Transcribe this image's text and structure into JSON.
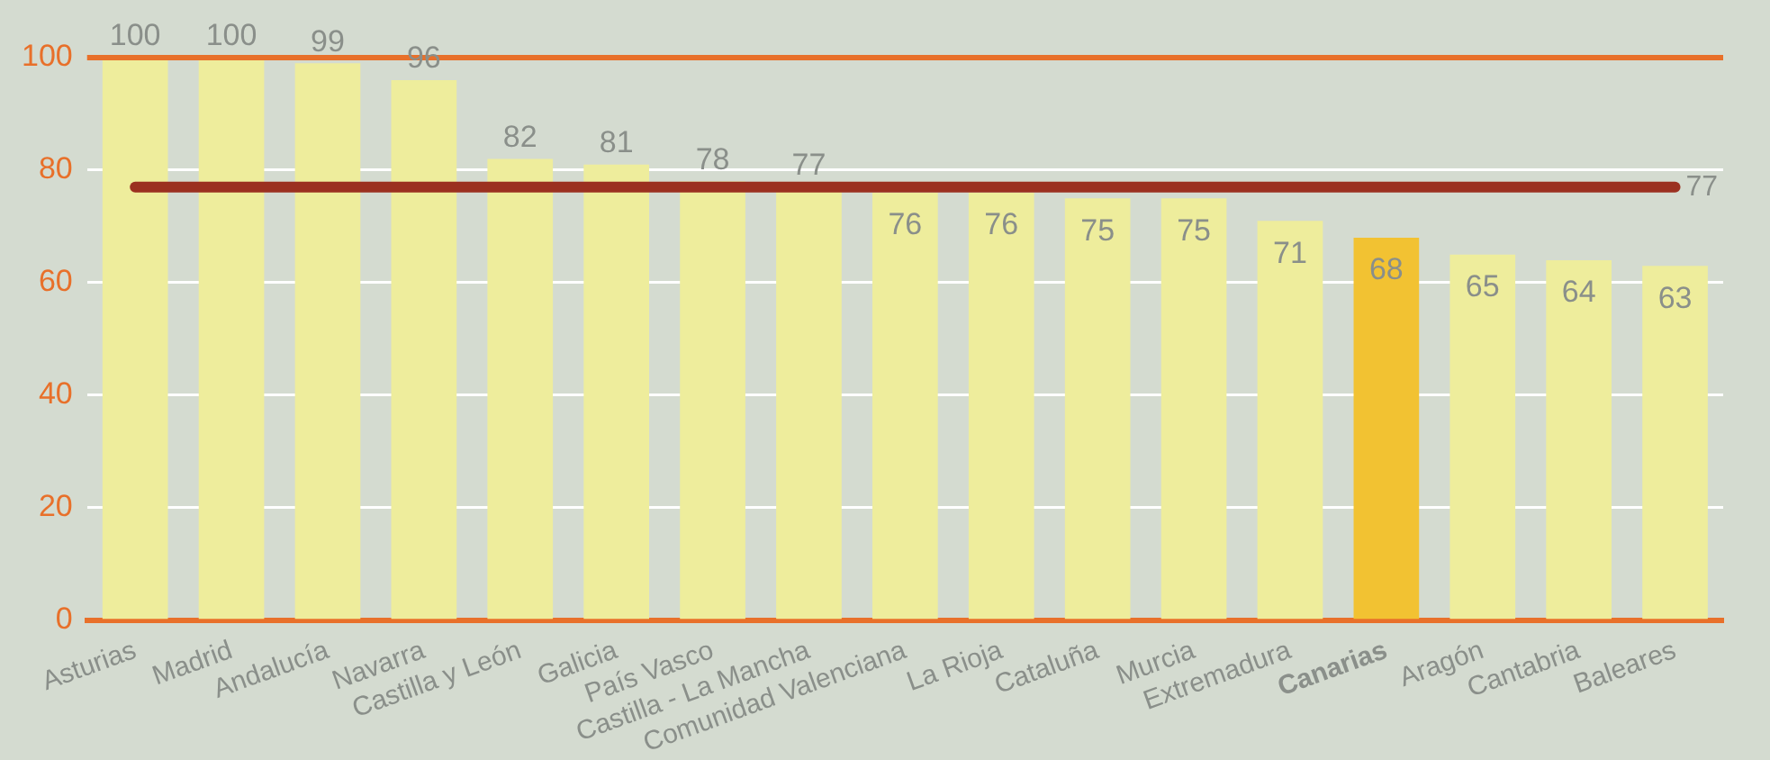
{
  "chart_data": {
    "type": "bar",
    "categories": [
      "Asturias",
      "Madrid",
      "Andalucía",
      "Navarra",
      "Castilla y León",
      "Galicia",
      "País Vasco",
      "Castilla - La Mancha",
      "Comunidad Valenciana",
      "La Rioja",
      "Cataluña",
      "Murcia",
      "Extremadura",
      "Canarias",
      "Aragón",
      "Cantabria",
      "Baleares"
    ],
    "values": [
      100,
      100,
      99,
      96,
      82,
      81,
      78,
      77,
      76,
      76,
      75,
      75,
      71,
      68,
      65,
      64,
      63
    ],
    "colors": [
      "#eeed9c",
      "#eeed9c",
      "#eeed9c",
      "#eeed9c",
      "#eeed9c",
      "#eeed9c",
      "#eeed9c",
      "#eeed9c",
      "#eeed9c",
      "#eeed9c",
      "#eeed9c",
      "#eeed9c",
      "#eeed9c",
      "#f2c232",
      "#eeed9c",
      "#eeed9c",
      "#eeed9c"
    ],
    "ylim": [
      0,
      100
    ],
    "yticks": [
      0,
      20,
      40,
      60,
      80,
      100
    ],
    "grid": "y",
    "data_labels": true,
    "ref_lines": [
      {
        "axis": "y",
        "value": 77,
        "label": "77",
        "color": "#9b3020"
      },
      {
        "axis": "y",
        "value": 100,
        "color": "#e8702a"
      }
    ]
  }
}
